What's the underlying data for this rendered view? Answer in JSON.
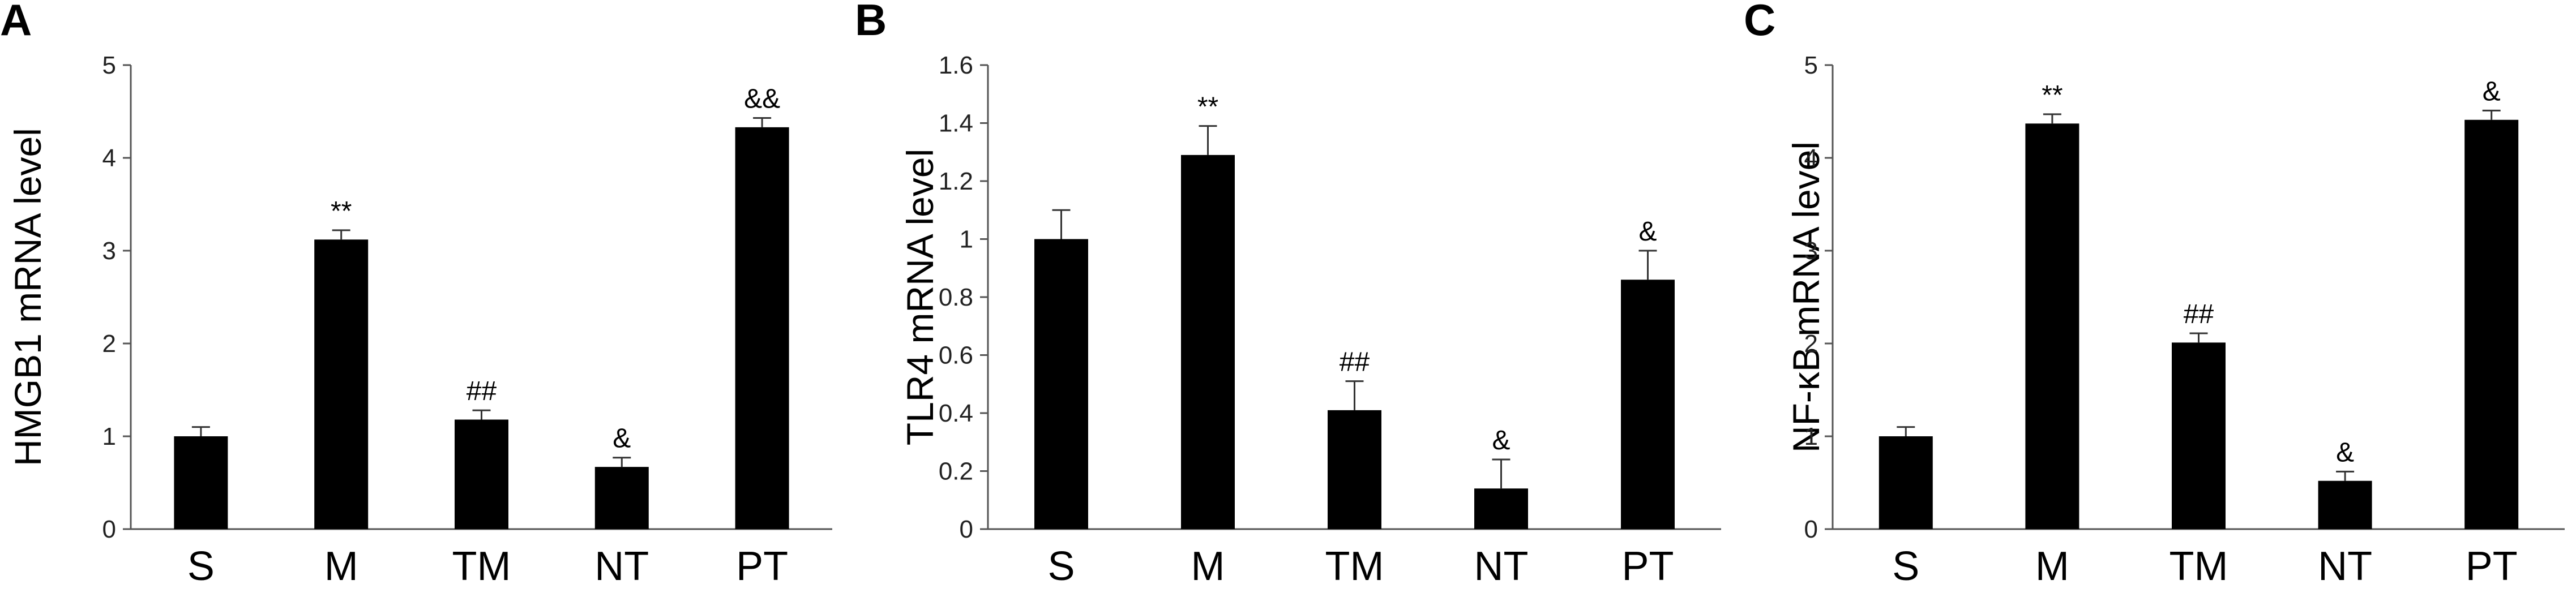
{
  "chart_data": [
    {
      "type": "bar",
      "panel": "A",
      "ylabel": "HMGB1 mRNA level",
      "categories": [
        "S",
        "M",
        "TM",
        "NT",
        "PT"
      ],
      "values": [
        1.0,
        3.12,
        1.18,
        0.67,
        4.33
      ],
      "errors": [
        0.1,
        0.1,
        0.1,
        0.1,
        0.1
      ],
      "annotations": [
        "",
        "**",
        "##",
        "&",
        "&&"
      ],
      "ylim": [
        0,
        5
      ],
      "yticks": [
        0,
        1,
        2,
        3,
        4,
        5
      ],
      "ytick_labels": [
        "0",
        "1",
        "2",
        "3",
        "4",
        "5"
      ]
    },
    {
      "type": "bar",
      "panel": "B",
      "ylabel": "TLR4 mRNA level",
      "categories": [
        "S",
        "M",
        "TM",
        "NT",
        "PT"
      ],
      "values": [
        1.0,
        1.29,
        0.41,
        0.14,
        0.86
      ],
      "errors": [
        0.1,
        0.1,
        0.1,
        0.1,
        0.1
      ],
      "annotations": [
        "",
        "**",
        "##",
        "&",
        "&"
      ],
      "ylim": [
        0,
        1.6
      ],
      "yticks": [
        0,
        0.2,
        0.4,
        0.6,
        0.8,
        1,
        1.2,
        1.4,
        1.6
      ],
      "ytick_labels": [
        "0",
        "0.2",
        "0.4",
        "0.6",
        "0.8",
        "1",
        "1.2",
        "1.4",
        "1.6"
      ]
    },
    {
      "type": "bar",
      "panel": "C",
      "ylabel": "NF-κB mRNA level",
      "categories": [
        "S",
        "M",
        "TM",
        "NT",
        "PT"
      ],
      "values": [
        1.0,
        4.37,
        2.01,
        0.52,
        4.41
      ],
      "errors": [
        0.1,
        0.1,
        0.1,
        0.1,
        0.1
      ],
      "annotations": [
        "",
        "**",
        "##",
        "&",
        "&"
      ],
      "ylim": [
        0,
        5
      ],
      "yticks": [
        0,
        1,
        2,
        3,
        4,
        5
      ],
      "ytick_labels": [
        "0",
        "1",
        "2",
        "3",
        "4",
        "5"
      ]
    }
  ],
  "colors": {
    "bar": "#000000",
    "axis": "#555555"
  }
}
